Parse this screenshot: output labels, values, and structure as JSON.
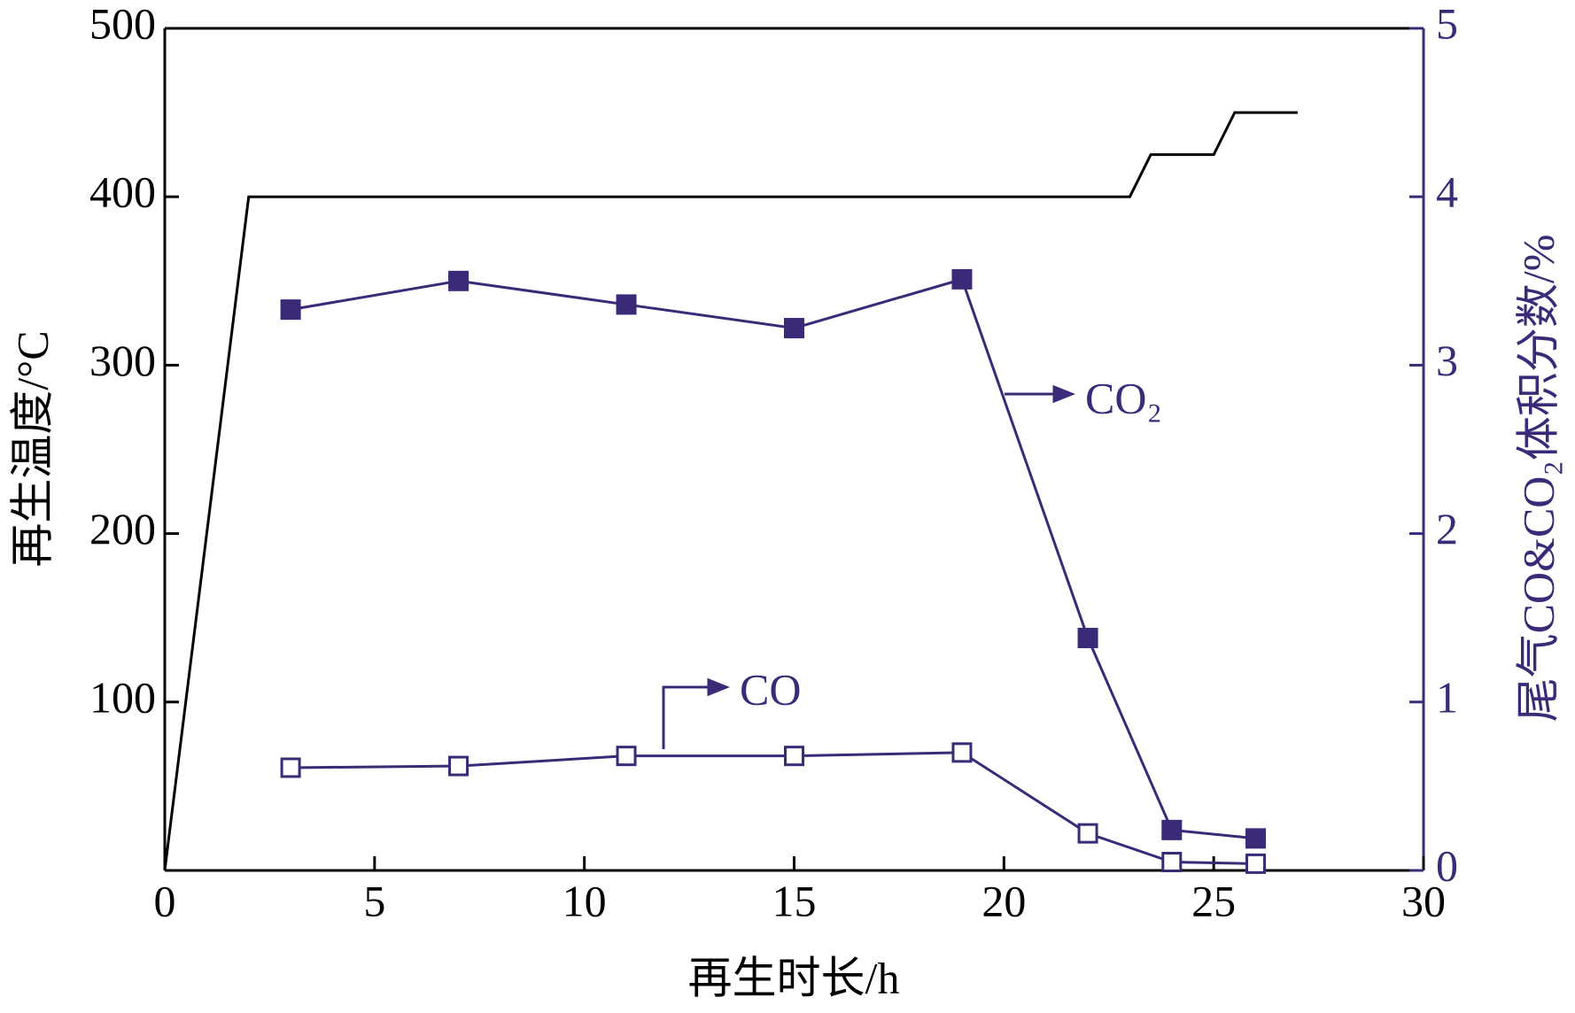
{
  "chart_data": {
    "type": "line",
    "x_label": "再生时长/h",
    "y_label": "再生温度/°C",
    "y2_label": "尾气CO&CO₂体积分数/%",
    "xlim": [
      0,
      30
    ],
    "xticks": [
      0,
      5,
      10,
      15,
      20,
      25,
      30
    ],
    "ylim": [
      0,
      500
    ],
    "yticks": [
      100,
      200,
      300,
      400,
      500
    ],
    "y2lim": [
      0,
      5
    ],
    "y2ticks": [
      0,
      1,
      2,
      3,
      4,
      5
    ],
    "series": [
      {
        "color": "#000000",
        "axis": "y",
        "marker": "none",
        "x": [
          0,
          2,
          23,
          23.5,
          25,
          25.5,
          27
        ],
        "values": [
          0,
          400,
          400,
          425,
          425,
          450,
          450
        ]
      },
      {
        "name": "CO₂",
        "color": "#3b2a78",
        "axis": "y2",
        "marker": "filled-square",
        "x": [
          3,
          7,
          11,
          15,
          19,
          22,
          24,
          26
        ],
        "values": [
          3.33,
          3.5,
          3.36,
          3.22,
          3.51,
          1.38,
          0.24,
          0.19
        ]
      },
      {
        "name": "CO",
        "color": "#3b2a78",
        "axis": "y2",
        "marker": "open-square",
        "x": [
          3,
          7,
          11,
          15,
          19,
          22,
          24,
          26
        ],
        "values": [
          0.61,
          0.62,
          0.68,
          0.68,
          0.7,
          0.22,
          0.05,
          0.04
        ]
      }
    ]
  }
}
